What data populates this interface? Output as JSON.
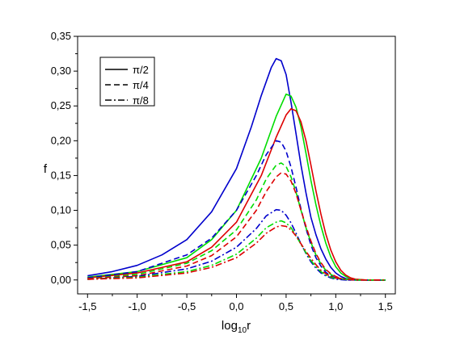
{
  "chart_data": {
    "type": "line",
    "xlabel": "log10r",
    "xlabel_main": "log",
    "xlabel_sub": "10",
    "xlabel_tail": "r",
    "ylabel": "f",
    "xlim": [
      -1.6,
      1.6
    ],
    "ylim": [
      -0.02,
      0.35
    ],
    "x_ticks": [
      -1.5,
      -1.0,
      -0.5,
      0.0,
      0.5,
      1.0,
      1.5
    ],
    "x_tick_labels": [
      "-1,5",
      "-1,0",
      "-0,5",
      "0,0",
      "0,5",
      "1,0",
      "1,5"
    ],
    "y_ticks": [
      0.0,
      0.05,
      0.1,
      0.15,
      0.2,
      0.25,
      0.3,
      0.35
    ],
    "y_tick_labels": [
      "0,00",
      "0,05",
      "0,10",
      "0,15",
      "0,20",
      "0,25",
      "0,30",
      "0,35"
    ],
    "grid": false,
    "legend": {
      "placement": "top-left",
      "entries": [
        {
          "label": "π/2",
          "dash": "solid"
        },
        {
          "label": "π/4",
          "dash": "dash"
        },
        {
          "label": "π/8",
          "dash": "dashdot"
        }
      ]
    },
    "colors": {
      "blue": "#0000cc",
      "green": "#00dd00",
      "red": "#dd0000"
    },
    "series": [
      {
        "color": "blue",
        "style": "solid",
        "x": [
          -1.5,
          -1.25,
          -1.0,
          -0.75,
          -0.5,
          -0.25,
          0.0,
          0.15,
          0.25,
          0.35,
          0.4,
          0.45,
          0.5,
          0.55,
          0.6,
          0.65,
          0.7,
          0.75,
          0.8,
          0.85,
          0.9,
          0.95,
          1.0,
          1.05,
          1.1,
          1.15,
          1.2,
          1.3,
          1.5
        ],
        "y": [
          0.006,
          0.012,
          0.021,
          0.036,
          0.058,
          0.098,
          0.16,
          0.22,
          0.265,
          0.305,
          0.318,
          0.315,
          0.295,
          0.255,
          0.21,
          0.165,
          0.125,
          0.09,
          0.065,
          0.045,
          0.03,
          0.018,
          0.01,
          0.005,
          0.002,
          0.001,
          0,
          0,
          0
        ]
      },
      {
        "color": "green",
        "style": "solid",
        "x": [
          -1.5,
          -1.0,
          -0.5,
          -0.25,
          0.0,
          0.25,
          0.4,
          0.5,
          0.55,
          0.6,
          0.65,
          0.7,
          0.75,
          0.8,
          0.85,
          0.9,
          0.95,
          1.0,
          1.05,
          1.1,
          1.15,
          1.2,
          1.3,
          1.5
        ],
        "y": [
          0.004,
          0.012,
          0.032,
          0.058,
          0.1,
          0.175,
          0.235,
          0.267,
          0.264,
          0.248,
          0.22,
          0.182,
          0.143,
          0.108,
          0.078,
          0.053,
          0.033,
          0.019,
          0.01,
          0.005,
          0.002,
          0.001,
          0,
          0
        ]
      },
      {
        "color": "red",
        "style": "solid",
        "x": [
          -1.5,
          -1.0,
          -0.5,
          -0.25,
          0.0,
          0.25,
          0.4,
          0.5,
          0.55,
          0.6,
          0.65,
          0.7,
          0.75,
          0.8,
          0.85,
          0.9,
          0.95,
          1.0,
          1.05,
          1.1,
          1.15,
          1.2,
          1.3,
          1.5
        ],
        "y": [
          0.003,
          0.01,
          0.026,
          0.047,
          0.083,
          0.15,
          0.205,
          0.237,
          0.246,
          0.243,
          0.227,
          0.2,
          0.165,
          0.128,
          0.095,
          0.066,
          0.043,
          0.026,
          0.014,
          0.007,
          0.003,
          0.001,
          0,
          0
        ]
      },
      {
        "color": "blue",
        "style": "dash",
        "x": [
          -1.5,
          -1.0,
          -0.5,
          -0.25,
          0.0,
          0.2,
          0.3,
          0.4,
          0.45,
          0.5,
          0.55,
          0.6,
          0.65,
          0.7,
          0.75,
          0.8,
          0.85,
          0.9,
          0.95,
          1.0,
          1.05,
          1.1,
          1.2,
          1.5
        ],
        "y": [
          0.003,
          0.012,
          0.036,
          0.06,
          0.1,
          0.15,
          0.18,
          0.2,
          0.198,
          0.185,
          0.162,
          0.133,
          0.102,
          0.074,
          0.05,
          0.032,
          0.02,
          0.011,
          0.006,
          0.003,
          0.001,
          0,
          0,
          0
        ]
      },
      {
        "color": "green",
        "style": "dash",
        "x": [
          -1.5,
          -1.0,
          -0.5,
          -0.25,
          0.0,
          0.2,
          0.3,
          0.4,
          0.45,
          0.5,
          0.55,
          0.6,
          0.65,
          0.7,
          0.75,
          0.8,
          0.85,
          0.9,
          0.95,
          1.0,
          1.05,
          1.1,
          1.2,
          1.5
        ],
        "y": [
          0.002,
          0.008,
          0.024,
          0.042,
          0.072,
          0.115,
          0.145,
          0.165,
          0.168,
          0.163,
          0.148,
          0.126,
          0.1,
          0.075,
          0.054,
          0.036,
          0.023,
          0.014,
          0.008,
          0.004,
          0.002,
          0.001,
          0,
          0
        ]
      },
      {
        "color": "red",
        "style": "dash",
        "x": [
          -1.5,
          -1.0,
          -0.5,
          -0.25,
          0.0,
          0.2,
          0.3,
          0.4,
          0.45,
          0.5,
          0.55,
          0.6,
          0.65,
          0.7,
          0.75,
          0.8,
          0.85,
          0.9,
          0.95,
          1.0,
          1.05,
          1.1,
          1.2,
          1.5
        ],
        "y": [
          0.002,
          0.006,
          0.02,
          0.035,
          0.062,
          0.1,
          0.127,
          0.148,
          0.154,
          0.152,
          0.142,
          0.124,
          0.1,
          0.077,
          0.056,
          0.038,
          0.025,
          0.015,
          0.009,
          0.005,
          0.002,
          0.001,
          0,
          0
        ]
      },
      {
        "color": "blue",
        "style": "dashdot",
        "x": [
          -1.5,
          -1.0,
          -0.5,
          -0.25,
          0.0,
          0.2,
          0.3,
          0.4,
          0.45,
          0.5,
          0.55,
          0.6,
          0.65,
          0.7,
          0.75,
          0.8,
          0.85,
          0.9,
          0.95,
          1.0,
          1.1,
          1.2,
          1.5
        ],
        "y": [
          0.001,
          0.005,
          0.016,
          0.027,
          0.047,
          0.074,
          0.092,
          0.101,
          0.1,
          0.093,
          0.082,
          0.067,
          0.052,
          0.038,
          0.026,
          0.017,
          0.01,
          0.006,
          0.003,
          0.001,
          0,
          0,
          0
        ]
      },
      {
        "color": "green",
        "style": "dashdot",
        "x": [
          -1.5,
          -1.0,
          -0.5,
          -0.25,
          0.0,
          0.2,
          0.3,
          0.4,
          0.45,
          0.5,
          0.55,
          0.6,
          0.65,
          0.7,
          0.75,
          0.8,
          0.85,
          0.9,
          0.95,
          1.0,
          1.1,
          1.2,
          1.5
        ],
        "y": [
          0.001,
          0.004,
          0.012,
          0.021,
          0.037,
          0.06,
          0.075,
          0.083,
          0.085,
          0.082,
          0.075,
          0.064,
          0.051,
          0.039,
          0.028,
          0.019,
          0.012,
          0.007,
          0.004,
          0.002,
          0.001,
          0,
          0
        ]
      },
      {
        "color": "red",
        "style": "dashdot",
        "x": [
          -1.5,
          -1.0,
          -0.5,
          -0.25,
          0.0,
          0.2,
          0.3,
          0.4,
          0.45,
          0.5,
          0.55,
          0.6,
          0.65,
          0.7,
          0.75,
          0.8,
          0.85,
          0.9,
          0.95,
          1.0,
          1.1,
          1.2,
          1.5
        ],
        "y": [
          0.001,
          0.003,
          0.01,
          0.018,
          0.032,
          0.053,
          0.067,
          0.076,
          0.078,
          0.077,
          0.072,
          0.063,
          0.052,
          0.041,
          0.031,
          0.022,
          0.014,
          0.009,
          0.005,
          0.003,
          0.001,
          0,
          0
        ]
      }
    ]
  }
}
